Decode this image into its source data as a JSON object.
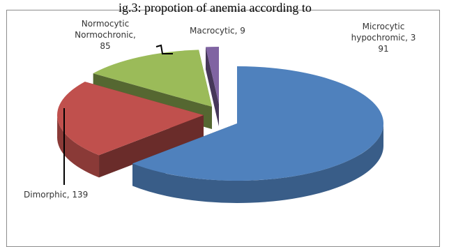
{
  "caption_fragment": "ig.3: propotion of anemia according to",
  "chart_data": {
    "type": "pie",
    "style": "3d-exploded",
    "title": "",
    "categories": [
      "Microcytic hypochromic",
      "Dimorphic",
      "Normocytic Normochronic",
      "Macrocytic"
    ],
    "values": [
      391,
      139,
      85,
      9
    ],
    "labels": [
      [
        "Microcytic",
        "hypochromic, 3",
        "91"
      ],
      [
        "Dimorphic, 139"
      ],
      [
        "Normocytic",
        "Normochronic,",
        "85"
      ],
      [
        "Macrocytic, 9"
      ]
    ],
    "colors": {
      "Microcytic hypochromic": "#4f81bd",
      "Dimorphic": "#c0504d",
      "Normocytic Normochronic": "#9bbb59",
      "Macrocytic": "#8064a2"
    },
    "legend": "none"
  }
}
